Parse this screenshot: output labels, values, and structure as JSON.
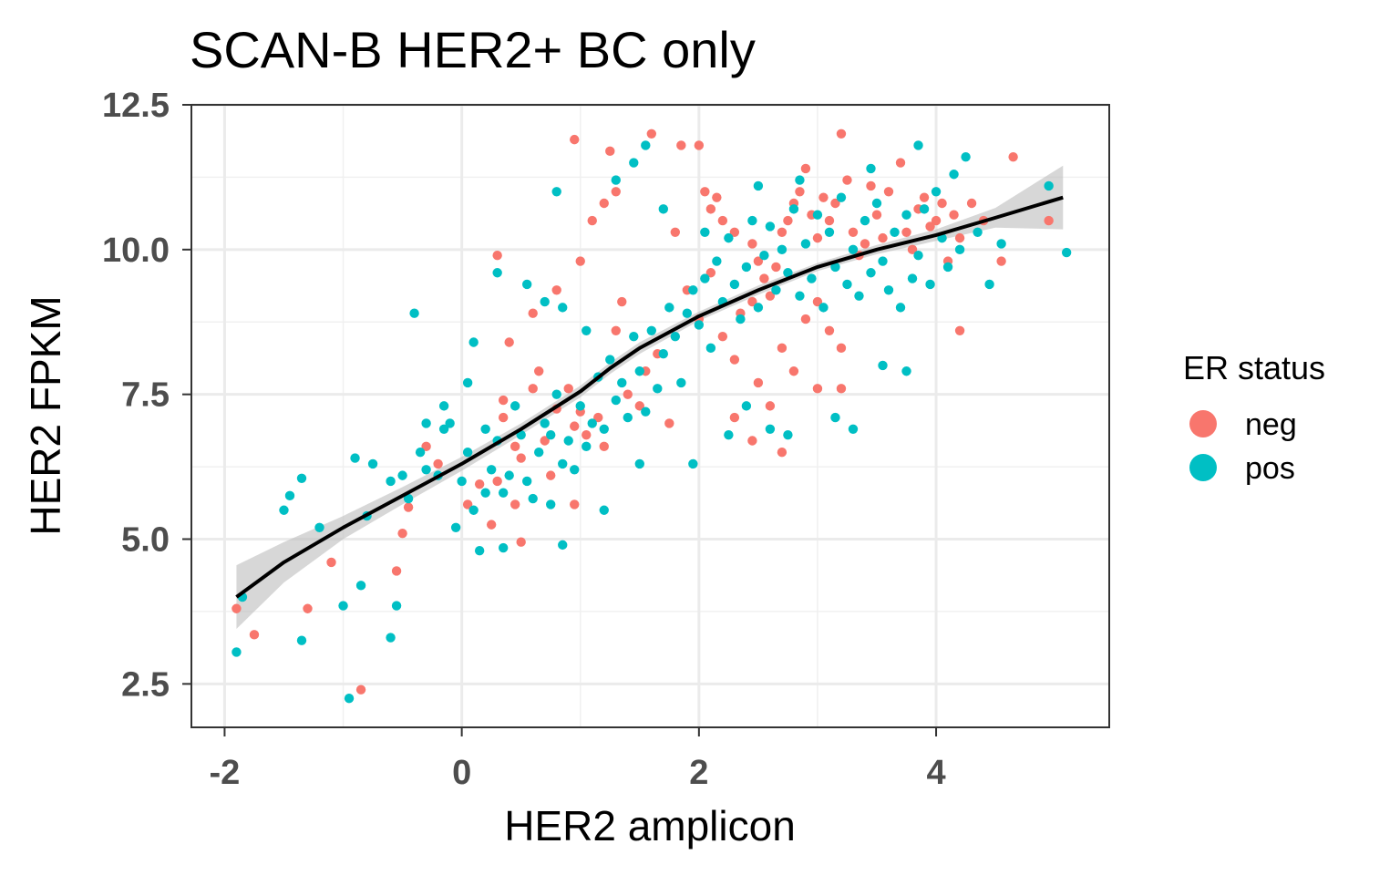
{
  "chart_data": {
    "type": "scatter",
    "title": "SCAN-B HER2+ BC only",
    "xlabel": "HER2 amplicon",
    "ylabel": "HER2 FPKM",
    "xlim": [
      -2.28,
      5.46
    ],
    "ylim": [
      1.75,
      12.5
    ],
    "x_ticks": [
      -2,
      0,
      2,
      4
    ],
    "x_tick_labels": [
      "-2",
      "0",
      "2",
      "4"
    ],
    "y_ticks": [
      2.5,
      5.0,
      7.5,
      10.0,
      12.5
    ],
    "y_tick_labels": [
      "2.5",
      "5.0",
      "7.5",
      "10.0",
      "12.5"
    ],
    "grid": true,
    "legend": {
      "title": "ER status",
      "position": "right",
      "entries": [
        {
          "label": "neg",
          "color": "#F8766D"
        },
        {
          "label": "pos",
          "color": "#00BFC4"
        }
      ]
    },
    "series": [
      {
        "name": "neg",
        "color": "#F8766D",
        "points": [
          [
            -1.9,
            3.8
          ],
          [
            -1.75,
            3.35
          ],
          [
            -1.3,
            3.8
          ],
          [
            -1.1,
            4.6
          ],
          [
            -0.85,
            2.4
          ],
          [
            -0.55,
            4.45
          ],
          [
            -0.5,
            5.1
          ],
          [
            -0.45,
            5.55
          ],
          [
            -0.3,
            6.6
          ],
          [
            -0.2,
            6.3
          ],
          [
            0.05,
            5.6
          ],
          [
            0.15,
            5.95
          ],
          [
            0.25,
            5.25
          ],
          [
            0.3,
            6.0
          ],
          [
            0.35,
            7.4
          ],
          [
            0.45,
            6.6
          ],
          [
            0.5,
            6.4
          ],
          [
            0.45,
            5.6
          ],
          [
            0.5,
            4.95
          ],
          [
            0.35,
            7.1
          ],
          [
            0.6,
            7.6
          ],
          [
            0.65,
            7.9
          ],
          [
            0.7,
            6.7
          ],
          [
            0.75,
            6.1
          ],
          [
            0.8,
            7.25
          ],
          [
            0.9,
            7.6
          ],
          [
            0.95,
            6.95
          ],
          [
            1.0,
            7.2
          ],
          [
            1.05,
            6.8
          ],
          [
            0.95,
            5.6
          ],
          [
            1.15,
            7.1
          ],
          [
            1.2,
            6.6
          ],
          [
            1.3,
            8.6
          ],
          [
            1.35,
            9.1
          ],
          [
            1.4,
            7.5
          ],
          [
            1.5,
            7.3
          ],
          [
            1.55,
            7.9
          ],
          [
            1.65,
            8.2
          ],
          [
            1.75,
            7.0
          ],
          [
            0.95,
            11.9
          ],
          [
            1.25,
            11.7
          ],
          [
            1.6,
            12.0
          ],
          [
            1.85,
            11.8
          ],
          [
            2.0,
            11.8
          ],
          [
            2.05,
            11.0
          ],
          [
            2.1,
            10.7
          ],
          [
            2.2,
            10.5
          ],
          [
            2.3,
            10.3
          ],
          [
            2.45,
            10.1
          ],
          [
            2.5,
            9.8
          ],
          [
            2.55,
            9.5
          ],
          [
            2.6,
            9.2
          ],
          [
            2.65,
            9.7
          ],
          [
            2.7,
            10.3
          ],
          [
            2.75,
            10.5
          ],
          [
            2.8,
            10.8
          ],
          [
            2.85,
            11.0
          ],
          [
            2.9,
            11.4
          ],
          [
            2.95,
            10.6
          ],
          [
            3.0,
            10.2
          ],
          [
            3.05,
            10.9
          ],
          [
            3.1,
            10.5
          ],
          [
            3.15,
            10.8
          ],
          [
            3.2,
            12.0
          ],
          [
            3.25,
            11.2
          ],
          [
            3.3,
            10.3
          ],
          [
            3.35,
            9.9
          ],
          [
            3.4,
            10.1
          ],
          [
            3.45,
            11.1
          ],
          [
            3.5,
            10.6
          ],
          [
            3.55,
            10.2
          ],
          [
            3.6,
            11.0
          ],
          [
            3.7,
            11.5
          ],
          [
            3.75,
            10.3
          ],
          [
            3.8,
            10.0
          ],
          [
            3.85,
            10.7
          ],
          [
            3.9,
            10.9
          ],
          [
            3.95,
            10.4
          ],
          [
            4.0,
            10.5
          ],
          [
            4.05,
            10.8
          ],
          [
            4.1,
            9.8
          ],
          [
            4.15,
            10.6
          ],
          [
            4.2,
            10.2
          ],
          [
            4.3,
            10.8
          ],
          [
            4.4,
            10.5
          ],
          [
            4.55,
            9.8
          ],
          [
            4.65,
            11.6
          ],
          [
            4.95,
            10.5
          ],
          [
            3.0,
            9.1
          ],
          [
            3.1,
            8.6
          ],
          [
            3.2,
            8.3
          ],
          [
            2.9,
            8.8
          ],
          [
            2.7,
            8.3
          ],
          [
            2.8,
            7.9
          ],
          [
            3.0,
            7.6
          ],
          [
            3.2,
            7.6
          ],
          [
            2.6,
            7.3
          ],
          [
            2.5,
            7.7
          ],
          [
            2.3,
            8.1
          ],
          [
            2.2,
            8.5
          ],
          [
            2.0,
            8.8
          ],
          [
            1.9,
            9.3
          ],
          [
            2.1,
            9.6
          ],
          [
            2.35,
            8.9
          ],
          [
            2.45,
            9.1
          ],
          [
            1.1,
            10.5
          ],
          [
            1.2,
            10.8
          ],
          [
            1.3,
            11.0
          ],
          [
            0.8,
            9.3
          ],
          [
            0.6,
            8.9
          ],
          [
            0.3,
            9.9
          ],
          [
            0.4,
            8.4
          ],
          [
            2.7,
            6.5
          ],
          [
            2.45,
            6.7
          ],
          [
            2.3,
            7.1
          ],
          [
            4.2,
            8.6
          ],
          [
            1.8,
            10.3
          ],
          [
            2.15,
            10.9
          ],
          [
            1.0,
            9.8
          ]
        ]
      },
      {
        "name": "pos",
        "color": "#00BFC4",
        "points": [
          [
            -1.9,
            3.05
          ],
          [
            -1.85,
            4.0
          ],
          [
            -1.5,
            5.5
          ],
          [
            -1.45,
            5.75
          ],
          [
            -1.35,
            6.05
          ],
          [
            -1.35,
            3.25
          ],
          [
            -1.2,
            5.2
          ],
          [
            -1.0,
            3.85
          ],
          [
            -0.95,
            2.25
          ],
          [
            -0.9,
            6.4
          ],
          [
            -0.8,
            5.4
          ],
          [
            -0.85,
            4.2
          ],
          [
            -0.75,
            6.3
          ],
          [
            -0.6,
            3.3
          ],
          [
            -0.6,
            6.0
          ],
          [
            -0.55,
            3.85
          ],
          [
            -0.5,
            6.1
          ],
          [
            -0.45,
            5.7
          ],
          [
            -0.4,
            8.9
          ],
          [
            -0.35,
            6.5
          ],
          [
            -0.3,
            7.0
          ],
          [
            -0.2,
            6.1
          ],
          [
            -0.15,
            6.9
          ],
          [
            -0.1,
            7.0
          ],
          [
            -0.05,
            5.2
          ],
          [
            0.0,
            6.0
          ],
          [
            0.05,
            6.5
          ],
          [
            0.1,
            5.5
          ],
          [
            0.15,
            4.8
          ],
          [
            0.2,
            5.8
          ],
          [
            0.25,
            6.2
          ],
          [
            0.3,
            6.7
          ],
          [
            0.35,
            5.8
          ],
          [
            0.4,
            6.1
          ],
          [
            0.45,
            7.3
          ],
          [
            0.5,
            6.8
          ],
          [
            0.55,
            6.0
          ],
          [
            0.6,
            5.7
          ],
          [
            0.65,
            6.5
          ],
          [
            0.7,
            7.0
          ],
          [
            0.75,
            6.8
          ],
          [
            0.8,
            7.5
          ],
          [
            0.85,
            6.3
          ],
          [
            0.9,
            6.7
          ],
          [
            0.95,
            6.2
          ],
          [
            1.0,
            7.3
          ],
          [
            1.05,
            6.6
          ],
          [
            1.1,
            7.0
          ],
          [
            1.15,
            7.8
          ],
          [
            1.2,
            6.9
          ],
          [
            1.25,
            8.1
          ],
          [
            1.3,
            7.4
          ],
          [
            1.35,
            7.7
          ],
          [
            1.4,
            7.1
          ],
          [
            1.45,
            8.5
          ],
          [
            1.5,
            7.9
          ],
          [
            1.55,
            7.2
          ],
          [
            1.6,
            8.6
          ],
          [
            1.65,
            7.6
          ],
          [
            1.7,
            8.2
          ],
          [
            1.75,
            9.0
          ],
          [
            1.8,
            8.5
          ],
          [
            1.85,
            7.7
          ],
          [
            1.9,
            8.9
          ],
          [
            1.95,
            9.3
          ],
          [
            2.0,
            8.7
          ],
          [
            2.05,
            9.5
          ],
          [
            2.1,
            8.3
          ],
          [
            2.15,
            9.8
          ],
          [
            2.2,
            9.1
          ],
          [
            2.25,
            10.2
          ],
          [
            2.3,
            9.4
          ],
          [
            2.35,
            8.8
          ],
          [
            2.4,
            9.7
          ],
          [
            2.45,
            10.5
          ],
          [
            2.5,
            9.0
          ],
          [
            2.55,
            9.9
          ],
          [
            2.6,
            10.4
          ],
          [
            2.65,
            9.3
          ],
          [
            2.7,
            10.0
          ],
          [
            2.75,
            9.6
          ],
          [
            2.8,
            10.7
          ],
          [
            2.85,
            9.2
          ],
          [
            2.9,
            10.1
          ],
          [
            2.95,
            9.5
          ],
          [
            3.0,
            10.6
          ],
          [
            3.05,
            9.0
          ],
          [
            3.1,
            10.3
          ],
          [
            3.15,
            9.7
          ],
          [
            3.2,
            10.9
          ],
          [
            3.25,
            9.4
          ],
          [
            3.3,
            10.0
          ],
          [
            3.35,
            9.2
          ],
          [
            3.4,
            10.5
          ],
          [
            3.45,
            9.6
          ],
          [
            3.5,
            10.8
          ],
          [
            3.55,
            9.8
          ],
          [
            3.6,
            9.3
          ],
          [
            3.65,
            10.3
          ],
          [
            3.7,
            9.0
          ],
          [
            3.75,
            10.6
          ],
          [
            3.8,
            9.5
          ],
          [
            3.85,
            9.9
          ],
          [
            3.9,
            10.7
          ],
          [
            3.95,
            9.4
          ],
          [
            4.0,
            11.0
          ],
          [
            4.05,
            10.2
          ],
          [
            4.1,
            9.7
          ],
          [
            4.15,
            11.3
          ],
          [
            4.2,
            10.0
          ],
          [
            4.25,
            11.6
          ],
          [
            4.35,
            10.3
          ],
          [
            4.45,
            9.4
          ],
          [
            4.55,
            10.1
          ],
          [
            4.95,
            11.1
          ],
          [
            5.1,
            9.95
          ],
          [
            1.55,
            11.8
          ],
          [
            1.45,
            11.5
          ],
          [
            1.3,
            11.2
          ],
          [
            0.8,
            11.0
          ],
          [
            0.3,
            9.6
          ],
          [
            0.55,
            9.4
          ],
          [
            0.7,
            9.1
          ],
          [
            0.85,
            9.0
          ],
          [
            -0.15,
            7.3
          ],
          [
            -0.3,
            6.2
          ],
          [
            0.1,
            8.4
          ],
          [
            0.05,
            7.7
          ],
          [
            0.2,
            6.9
          ],
          [
            2.25,
            6.8
          ],
          [
            2.4,
            7.3
          ],
          [
            2.6,
            6.9
          ],
          [
            2.75,
            6.8
          ],
          [
            3.15,
            7.1
          ],
          [
            3.3,
            6.9
          ],
          [
            3.55,
            8.0
          ],
          [
            3.75,
            7.9
          ],
          [
            1.95,
            6.3
          ],
          [
            1.5,
            6.3
          ],
          [
            1.2,
            5.5
          ],
          [
            0.85,
            4.9
          ],
          [
            0.75,
            5.6
          ],
          [
            0.35,
            4.85
          ],
          [
            1.05,
            8.6
          ],
          [
            1.7,
            10.7
          ],
          [
            2.05,
            10.3
          ],
          [
            2.5,
            11.1
          ],
          [
            2.85,
            11.2
          ],
          [
            3.45,
            11.4
          ],
          [
            3.85,
            11.8
          ]
        ]
      }
    ],
    "smooth": {
      "color": "#000000",
      "band_color": "#bdbdbd",
      "x": [
        -1.9,
        -1.5,
        -1.0,
        -0.5,
        0.0,
        0.5,
        1.0,
        1.25,
        1.5,
        2.0,
        2.5,
        3.0,
        3.5,
        4.0,
        4.5,
        5.07
      ],
      "y": [
        4.0,
        4.6,
        5.2,
        5.75,
        6.3,
        6.9,
        7.55,
        7.95,
        8.3,
        8.85,
        9.3,
        9.7,
        10.0,
        10.25,
        10.55,
        10.9
      ],
      "lower": [
        3.45,
        4.25,
        5.0,
        5.6,
        6.18,
        6.8,
        7.45,
        7.85,
        8.2,
        8.77,
        9.22,
        9.63,
        9.92,
        10.15,
        10.38,
        10.35
      ],
      "upper": [
        4.55,
        4.95,
        5.4,
        5.9,
        6.42,
        7.0,
        7.65,
        8.05,
        8.4,
        8.93,
        9.38,
        9.77,
        10.08,
        10.35,
        10.72,
        11.45
      ]
    }
  }
}
